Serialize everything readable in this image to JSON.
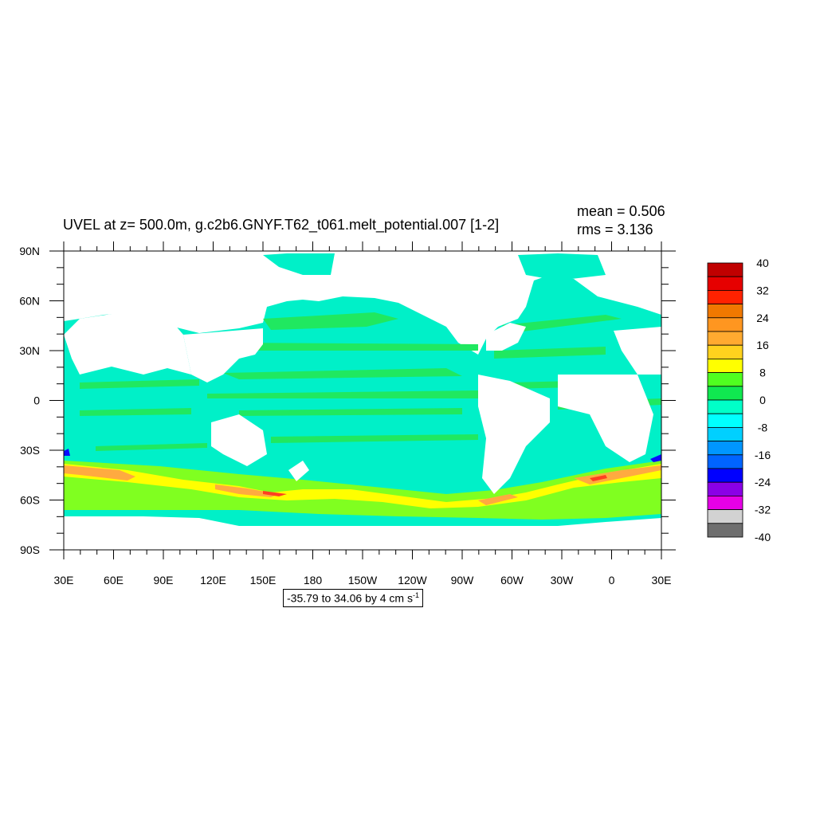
{
  "title": "UVEL at z= 500.0m, g.c2b6.GNYF.T62_t061.melt_potential.007 [1-2]",
  "stats": {
    "mean": "mean = 0.506",
    "rms": "rms = 3.136"
  },
  "lat_labels": [
    "90N",
    "60N",
    "30N",
    "0",
    "30S",
    "60S",
    "90S"
  ],
  "lon_labels": [
    "30E",
    "60E",
    "90E",
    "120E",
    "150E",
    "180",
    "150W",
    "120W",
    "90W",
    "60W",
    "30W",
    "0",
    "30E"
  ],
  "info": {
    "text": "-35.79 to 34.06 by 4 cm s",
    "unit_exp": "-1"
  },
  "colorbar": {
    "labels": [
      "40",
      "32",
      "24",
      "16",
      "8",
      "0",
      "-8",
      "-16",
      "-24",
      "-32",
      "-40"
    ],
    "colors": [
      "#c00000",
      "#e60000",
      "#ff2200",
      "#f07800",
      "#ff9620",
      "#ffaa30",
      "#ffd21e",
      "#ffff00",
      "#50ff20",
      "#10e850",
      "#00ffc8",
      "#00ffff",
      "#00d0ff",
      "#0096ff",
      "#0064ff",
      "#0000ff",
      "#8a00e6",
      "#e600e6",
      "#d2d2d2",
      "#6e6e6e"
    ]
  },
  "map_colors": {
    "ocean": "#00f0c8",
    "band_pos": "#20e860",
    "acc_strong": "#80ff20",
    "acc_core": "#ffff00",
    "acc_jet": "#ffaa40",
    "acc_max": "#ff4020",
    "west": "#0a0aff",
    "land": "#ffffff"
  }
}
